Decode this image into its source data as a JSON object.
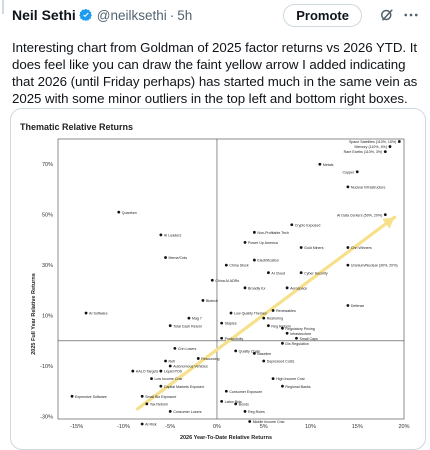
{
  "tweet": {
    "author_name": "Neil Sethi",
    "handle": "@neilksethi",
    "separator": "·",
    "time": "5h",
    "promote_label": "Promote",
    "text": "Interesting chart from Goldman of 2025 factor returns vs 2026 YTD. It does feel like you can draw the faint yellow arrow I added indicating that 2026 (until Friday perhaps) has started much in the same vein as 2025 with some minor outliers in the top left and bottom right boxes.",
    "icons": [
      "verified-badge-icon",
      "grok-icon",
      "more-icon"
    ],
    "accent_color": "#1d9bf0"
  },
  "chart_data": {
    "type": "scatter",
    "title": "Thematic Relative Returns",
    "xlabel": "2026 Year-To-Date Relative Returns",
    "ylabel": "2025 Full Year Relative Returns",
    "xlim": [
      -17,
      20
    ],
    "ylim": [
      -31,
      80
    ],
    "xticks": [
      "-15%",
      "-10%",
      "-5%",
      "0%",
      "5%",
      "10%",
      "15%",
      "20%"
    ],
    "xtick_values": [
      -15,
      -10,
      -5,
      0,
      5,
      10,
      15,
      20
    ],
    "yticks": [
      "-30%",
      "-10%",
      "10%",
      "30%",
      "50%",
      "70%"
    ],
    "ytick_values": [
      -30,
      -10,
      10,
      30,
      50,
      70
    ],
    "arrow": {
      "from": [
        -8.5,
        -27
      ],
      "to": [
        19,
        49
      ],
      "color": "#f7e08a"
    },
    "points": [
      {
        "label": "Space Satellites (110%, 15%)",
        "x": 19.5,
        "y": 79
      },
      {
        "label": "Memory (110%, 4%)",
        "x": 18.5,
        "y": 77
      },
      {
        "label": "Rare Earths (110%, 3%)",
        "x": 18,
        "y": 75
      },
      {
        "label": "Metals",
        "x": 11,
        "y": 70
      },
      {
        "label": "Copper",
        "x": 15,
        "y": 67
      },
      {
        "label": "Nuclear Infrastructure",
        "x": 14,
        "y": 61
      },
      {
        "label": "Quantum",
        "x": -10.5,
        "y": 51
      },
      {
        "label": "AI Data Centers (50%, 20%)",
        "x": 18,
        "y": 50
      },
      {
        "label": "Crypto Exposed",
        "x": 8,
        "y": 46
      },
      {
        "label": "AI Leaders",
        "x": -6,
        "y": 42
      },
      {
        "label": "Non-Profitable Tech",
        "x": 4,
        "y": 43
      },
      {
        "label": "Power Up America",
        "x": 3,
        "y": 39
      },
      {
        "label": "Gold Miners",
        "x": 9,
        "y": 37
      },
      {
        "label": "Chn Winners",
        "x": 14,
        "y": 37
      },
      {
        "label": "Meme/Crds",
        "x": -5.5,
        "y": 33
      },
      {
        "label": "China Stock",
        "x": 1,
        "y": 30
      },
      {
        "label": "Electrification",
        "x": 4,
        "y": 32
      },
      {
        "label": "Uranium/Nuclear (30%, 20%)",
        "x": 14,
        "y": 30
      },
      {
        "label": "AI Cloud",
        "x": 5.5,
        "y": 27
      },
      {
        "label": "Cyber Security",
        "x": 9,
        "y": 27
      },
      {
        "label": "China AI ADRs",
        "x": -0.5,
        "y": 24
      },
      {
        "label": "Broadly Ex",
        "x": 3,
        "y": 21
      },
      {
        "label": "Aerospace",
        "x": 7.5,
        "y": 21
      },
      {
        "label": "Defense",
        "x": 14,
        "y": 14
      },
      {
        "label": "Biotech",
        "x": -1.5,
        "y": 16
      },
      {
        "label": "Renewables",
        "x": 6,
        "y": 12
      },
      {
        "label": "AI Software",
        "x": -14,
        "y": 11
      },
      {
        "label": "Mag 7",
        "x": -3,
        "y": 9
      },
      {
        "label": "Low Quality Themes",
        "x": 1.5,
        "y": 11
      },
      {
        "label": "Total Cash Return",
        "x": -5,
        "y": 6
      },
      {
        "label": "Staples",
        "x": 0.5,
        "y": 7
      },
      {
        "label": "Reshoring",
        "x": 5,
        "y": 9
      },
      {
        "label": "Reg Reform",
        "x": 5.5,
        "y": 6
      },
      {
        "label": "Regulatory Pricing",
        "x": 7,
        "y": 5
      },
      {
        "label": "Infrastructure",
        "x": 7.5,
        "y": 3
      },
      {
        "label": "Small Caps",
        "x": 8.5,
        "y": 1
      },
      {
        "label": "Productivity",
        "x": 0.5,
        "y": 1
      },
      {
        "label": "Chn Losers",
        "x": -4.5,
        "y": -3
      },
      {
        "label": "Dis Regulation",
        "x": 7,
        "y": -1
      },
      {
        "label": "Quality Chain",
        "x": 2,
        "y": -4
      },
      {
        "label": "Baseline",
        "x": 4,
        "y": -5
      },
      {
        "label": "Refi",
        "x": -5.5,
        "y": -8
      },
      {
        "label": "Resourcing",
        "x": -2,
        "y": -7
      },
      {
        "label": "Depressed Costs",
        "x": 5,
        "y": -8
      },
      {
        "label": "Autonomous Vehicles",
        "x": -5,
        "y": -10
      },
      {
        "label": "HALO Targets",
        "x": -9,
        "y": -12
      },
      {
        "label": "Liquid POS",
        "x": -6,
        "y": -12
      },
      {
        "label": "Low Income Cnsr",
        "x": -7,
        "y": -15
      },
      {
        "label": "Capital Markets Exposed",
        "x": -6,
        "y": -18
      },
      {
        "label": "High Income Cnsr",
        "x": 6,
        "y": -15
      },
      {
        "label": "Regional Banks",
        "x": 7,
        "y": -18
      },
      {
        "label": "Small Biz Exposure",
        "x": -8,
        "y": -22
      },
      {
        "label": "Expensive Software",
        "x": -15.5,
        "y": -22
      },
      {
        "label": "Tax Reform",
        "x": -7.5,
        "y": -25
      },
      {
        "label": "Consumer Exposure",
        "x": 1,
        "y": -20
      },
      {
        "label": "Labor Bids",
        "x": 0.5,
        "y": -24
      },
      {
        "label": "Bonds",
        "x": 2,
        "y": -25
      },
      {
        "label": "AI Risk",
        "x": -8,
        "y": -33
      },
      {
        "label": "Reg Rules",
        "x": 3,
        "y": -28
      },
      {
        "label": "Middle Income Cnsr",
        "x": 3.5,
        "y": -32
      },
      {
        "label": "Consumer Losers",
        "x": -5,
        "y": -28
      }
    ]
  }
}
